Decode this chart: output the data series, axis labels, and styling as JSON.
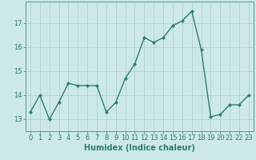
{
  "x": [
    0,
    1,
    2,
    3,
    4,
    5,
    6,
    7,
    8,
    9,
    10,
    11,
    12,
    13,
    14,
    15,
    16,
    17,
    18,
    19,
    20,
    21,
    22,
    23
  ],
  "y": [
    13.3,
    14.0,
    13.0,
    13.7,
    14.5,
    14.4,
    14.4,
    14.4,
    13.3,
    13.7,
    14.7,
    15.3,
    16.4,
    16.2,
    16.4,
    16.9,
    17.1,
    17.5,
    15.9,
    13.1,
    13.2,
    13.6,
    13.6,
    14.0
  ],
  "line_color": "#2e7d6e",
  "marker": "D",
  "markersize": 2,
  "linewidth": 1.0,
  "bg_color": "#cce8e8",
  "grid_color": "#aacece",
  "xlabel": "Humidex (Indice chaleur)",
  "xlabel_fontsize": 7,
  "tick_fontsize": 6,
  "ylim": [
    12.5,
    17.9
  ],
  "xlim": [
    -0.5,
    23.5
  ],
  "yticks": [
    13,
    14,
    15,
    16,
    17
  ],
  "xticks": [
    0,
    1,
    2,
    3,
    4,
    5,
    6,
    7,
    8,
    9,
    10,
    11,
    12,
    13,
    14,
    15,
    16,
    17,
    18,
    19,
    20,
    21,
    22,
    23
  ]
}
